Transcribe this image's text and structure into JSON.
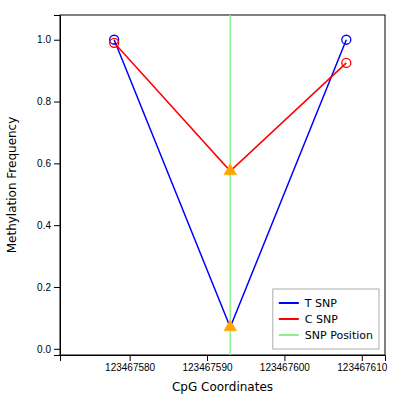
{
  "chart_data": {
    "type": "line",
    "xlabel": "CpG Coordinates",
    "ylabel": "Methylation Frequency",
    "x": [
      123467578,
      123467593,
      123467608
    ],
    "series": [
      {
        "name": "T SNP",
        "color": "blue",
        "marker": "circle",
        "values": [
          1.0,
          0.07,
          1.0
        ]
      },
      {
        "name": "C SNP",
        "color": "red",
        "marker": "circle",
        "values": [
          0.99,
          0.575,
          0.925
        ]
      }
    ],
    "vline": {
      "name": "SNP Position",
      "value": 123467593,
      "color": "#90EE90",
      "marker": "triangle",
      "marker_color": "#FFA500"
    },
    "xlim": [
      123467571,
      123467613
    ],
    "ylim": [
      -0.02,
      1.08
    ],
    "xticks": [
      123467580,
      123467590,
      123467600,
      123467610
    ],
    "yticks": [
      {
        "value": 0.0,
        "label": "0.0"
      },
      0.2,
      0.4,
      0.6,
      0.8,
      {
        "value": 1.0,
        "label": "1.0"
      }
    ],
    "grid": false,
    "legend": "lower right"
  }
}
